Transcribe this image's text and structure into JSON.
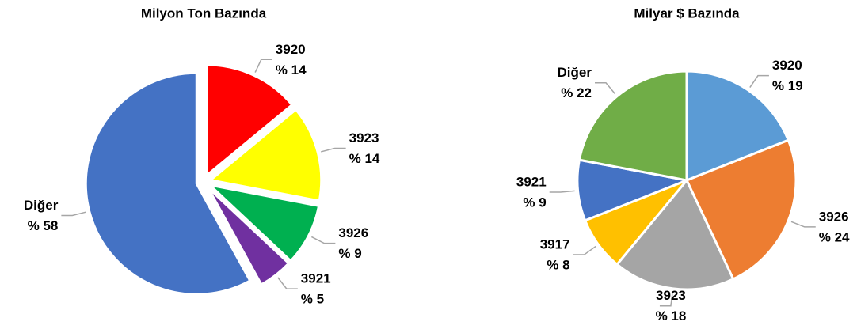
{
  "chart_data": [
    {
      "type": "pie",
      "title": "Milyon Ton Bazında",
      "exploded": true,
      "categories": [
        "3920",
        "3923",
        "3926",
        "3921",
        "Diğer"
      ],
      "values": [
        14,
        14,
        9,
        5,
        58
      ],
      "value_labels": [
        "% 14",
        "% 14",
        "% 9",
        "% 5",
        "% 58"
      ],
      "colors": [
        "#ff0000",
        "#ffff00",
        "#00b050",
        "#7030a0",
        "#4472c4"
      ]
    },
    {
      "type": "pie",
      "title": "Milyar $ Bazında",
      "exploded": false,
      "categories": [
        "3920",
        "3926",
        "3923",
        "3917",
        "3921",
        "Diğer"
      ],
      "values": [
        19,
        24,
        18,
        8,
        9,
        22
      ],
      "value_labels": [
        "% 19",
        "% 24",
        "% 18",
        "% 8",
        "% 9",
        "% 22"
      ],
      "colors": [
        "#5b9bd5",
        "#ed7d31",
        "#a5a5a5",
        "#ffc000",
        "#4472c4",
        "#70ad47"
      ]
    }
  ]
}
